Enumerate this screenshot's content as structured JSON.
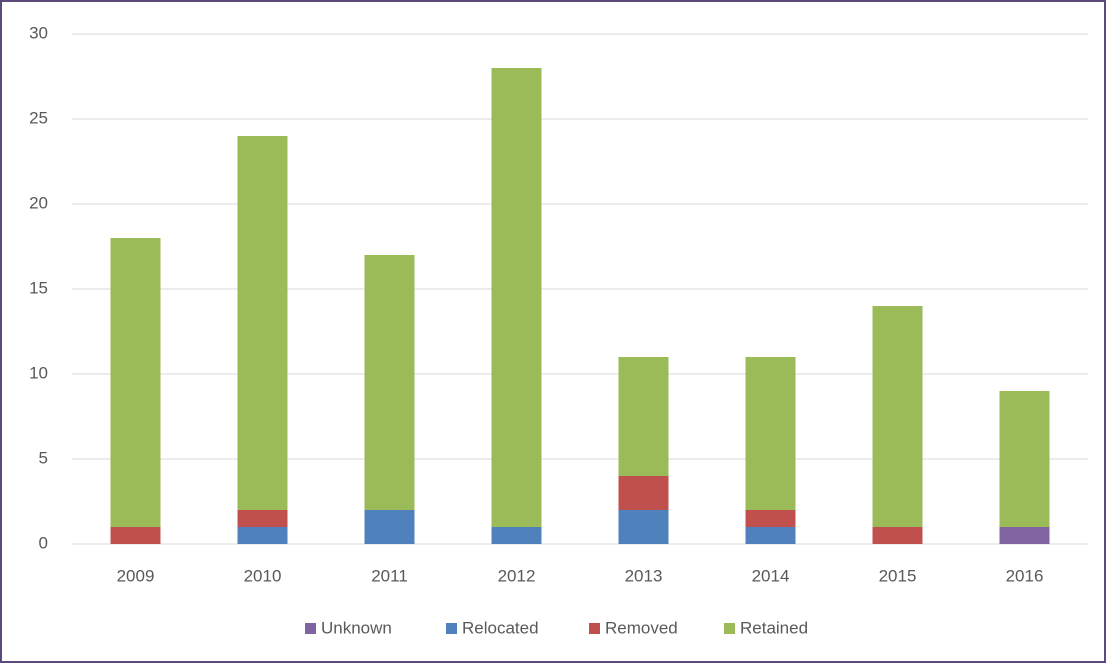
{
  "chart_data": {
    "type": "stacked_bar",
    "categories": [
      "2009",
      "2010",
      "2011",
      "2012",
      "2013",
      "2014",
      "2015",
      "2016"
    ],
    "series": [
      {
        "name": "Unknown",
        "color": "#8064a2",
        "values": [
          0,
          0,
          0,
          0,
          0,
          0,
          0,
          1
        ]
      },
      {
        "name": "Relocated",
        "color": "#4f81bd",
        "values": [
          0,
          1,
          2,
          1,
          2,
          1,
          0,
          0
        ]
      },
      {
        "name": "Removed",
        "color": "#c0504d",
        "values": [
          1,
          1,
          0,
          0,
          2,
          1,
          1,
          0
        ]
      },
      {
        "name": "Retained",
        "color": "#9bbb59",
        "values": [
          17,
          22,
          15,
          27,
          7,
          9,
          13,
          8
        ]
      }
    ],
    "ylim": [
      0,
      30
    ],
    "yticks": [
      0,
      5,
      10,
      15,
      20,
      25,
      30
    ],
    "grid": true,
    "legend": "bottom"
  }
}
